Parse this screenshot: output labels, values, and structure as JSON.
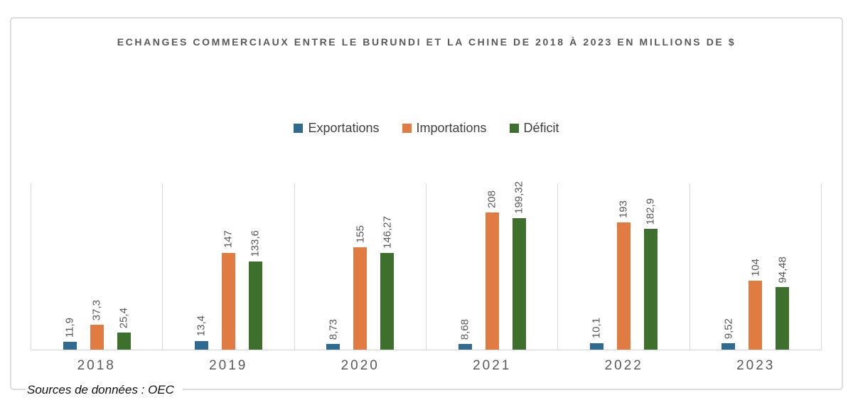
{
  "title": "ECHANGES COMMERCIAUX ENTRE LE BURUNDI ET LA CHINE DE 2018 À 2023 EN MILLIONS DE $",
  "source_note": "Sources de données : OEC",
  "colors": {
    "exportations": "#2e6b8f",
    "importations": "#e07c42",
    "deficit": "#3d6f2d",
    "gridline": "#d9d9d9",
    "text_gray": "#595959"
  },
  "chart_data": {
    "type": "bar",
    "title": "ECHANGES COMMERCIAUX ENTRE LE BURUNDI ET LA CHINE DE 2018 À 2023 EN MILLIONS DE $",
    "categories": [
      "2018",
      "2019",
      "2020",
      "2021",
      "2022",
      "2023"
    ],
    "series": [
      {
        "name": "Exportations",
        "color": "#2e6b8f",
        "values": [
          11.9,
          13.4,
          8.73,
          8.68,
          10.1,
          9.52
        ],
        "labels": [
          "11,9",
          "13,4",
          "8,73",
          "8,68",
          "10,1",
          "9,52"
        ]
      },
      {
        "name": "Importations",
        "color": "#e07c42",
        "values": [
          37.3,
          147,
          155,
          208,
          193,
          104
        ],
        "labels": [
          "37,3",
          "147",
          "155",
          "208",
          "193",
          "104"
        ]
      },
      {
        "name": "Déficit",
        "color": "#3d6f2d",
        "values": [
          25.4,
          133.6,
          146.27,
          199.32,
          182.9,
          94.48
        ],
        "labels": [
          "25,4",
          "133,6",
          "146,27",
          "199,32",
          "182,9",
          "94,48"
        ]
      }
    ],
    "ylabel": "",
    "xlabel": "",
    "ylim": [
      0,
      253
    ],
    "grid": "vertical category separators only, no y-axis ticks or labels",
    "legend_position": "top-center",
    "value_labels": "rotated 90 degrees, above each bar",
    "source": "Sources de données : OEC"
  }
}
